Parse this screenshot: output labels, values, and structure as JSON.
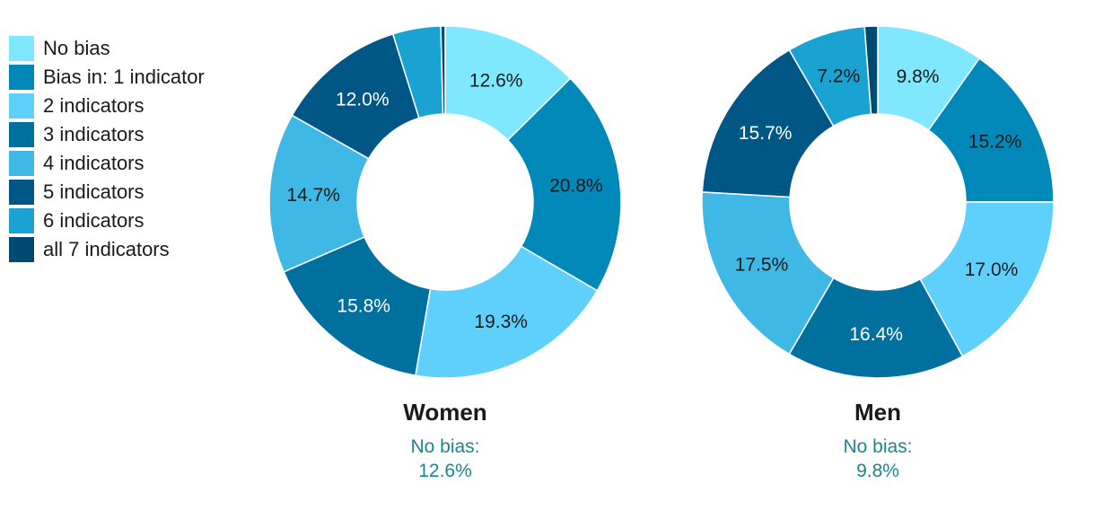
{
  "chart_data": [
    {
      "type": "pie",
      "title": "Women",
      "subtitle_label": "No bias:",
      "subtitle_value": "12.6%",
      "categories": [
        "No bias",
        "Bias in: 1 indicator",
        "2 indicators",
        "3 indicators",
        "4 indicators",
        "5 indicators",
        "6 indicators",
        "all 7 indicators"
      ],
      "values": [
        12.6,
        20.8,
        19.3,
        15.8,
        14.7,
        12.0,
        4.4,
        0.4
      ],
      "labels": [
        "12.6%",
        "20.8%",
        "19.3%",
        "15.8%",
        "14.7%",
        "12.0%",
        "",
        ""
      ]
    },
    {
      "type": "pie",
      "title": "Men",
      "subtitle_label": "No bias:",
      "subtitle_value": "9.8%",
      "categories": [
        "No bias",
        "Bias in: 1 indicator",
        "2 indicators",
        "3 indicators",
        "4 indicators",
        "5 indicators",
        "6 indicators",
        "all 7 indicators"
      ],
      "values": [
        9.8,
        15.2,
        17.0,
        16.4,
        17.5,
        15.7,
        7.2,
        1.2
      ],
      "labels": [
        "9.8%",
        "15.2%",
        "17.0%",
        "16.4%",
        "17.5%",
        "15.7%",
        "7.2%",
        ""
      ]
    }
  ],
  "legend": {
    "items": [
      {
        "label": "No bias",
        "color": "#7fe8ff"
      },
      {
        "label": "Bias in: 1 indicator",
        "color": "#0089b8"
      },
      {
        "label": "2 indicators",
        "color": "#5fd0fc"
      },
      {
        "label": "3 indicators",
        "color": "#00709e"
      },
      {
        "label": "4 indicators",
        "color": "#40b8e6"
      },
      {
        "label": "5 indicators",
        "color": "#005785"
      },
      {
        "label": "6 indicators",
        "color": "#1aa2d2"
      },
      {
        "label": "all 7 indicators",
        "color": "#004a70"
      }
    ]
  },
  "colors": {
    "label_light_slices": [
      "#005785",
      "#00709e"
    ],
    "subtitle": "#1a8694"
  }
}
